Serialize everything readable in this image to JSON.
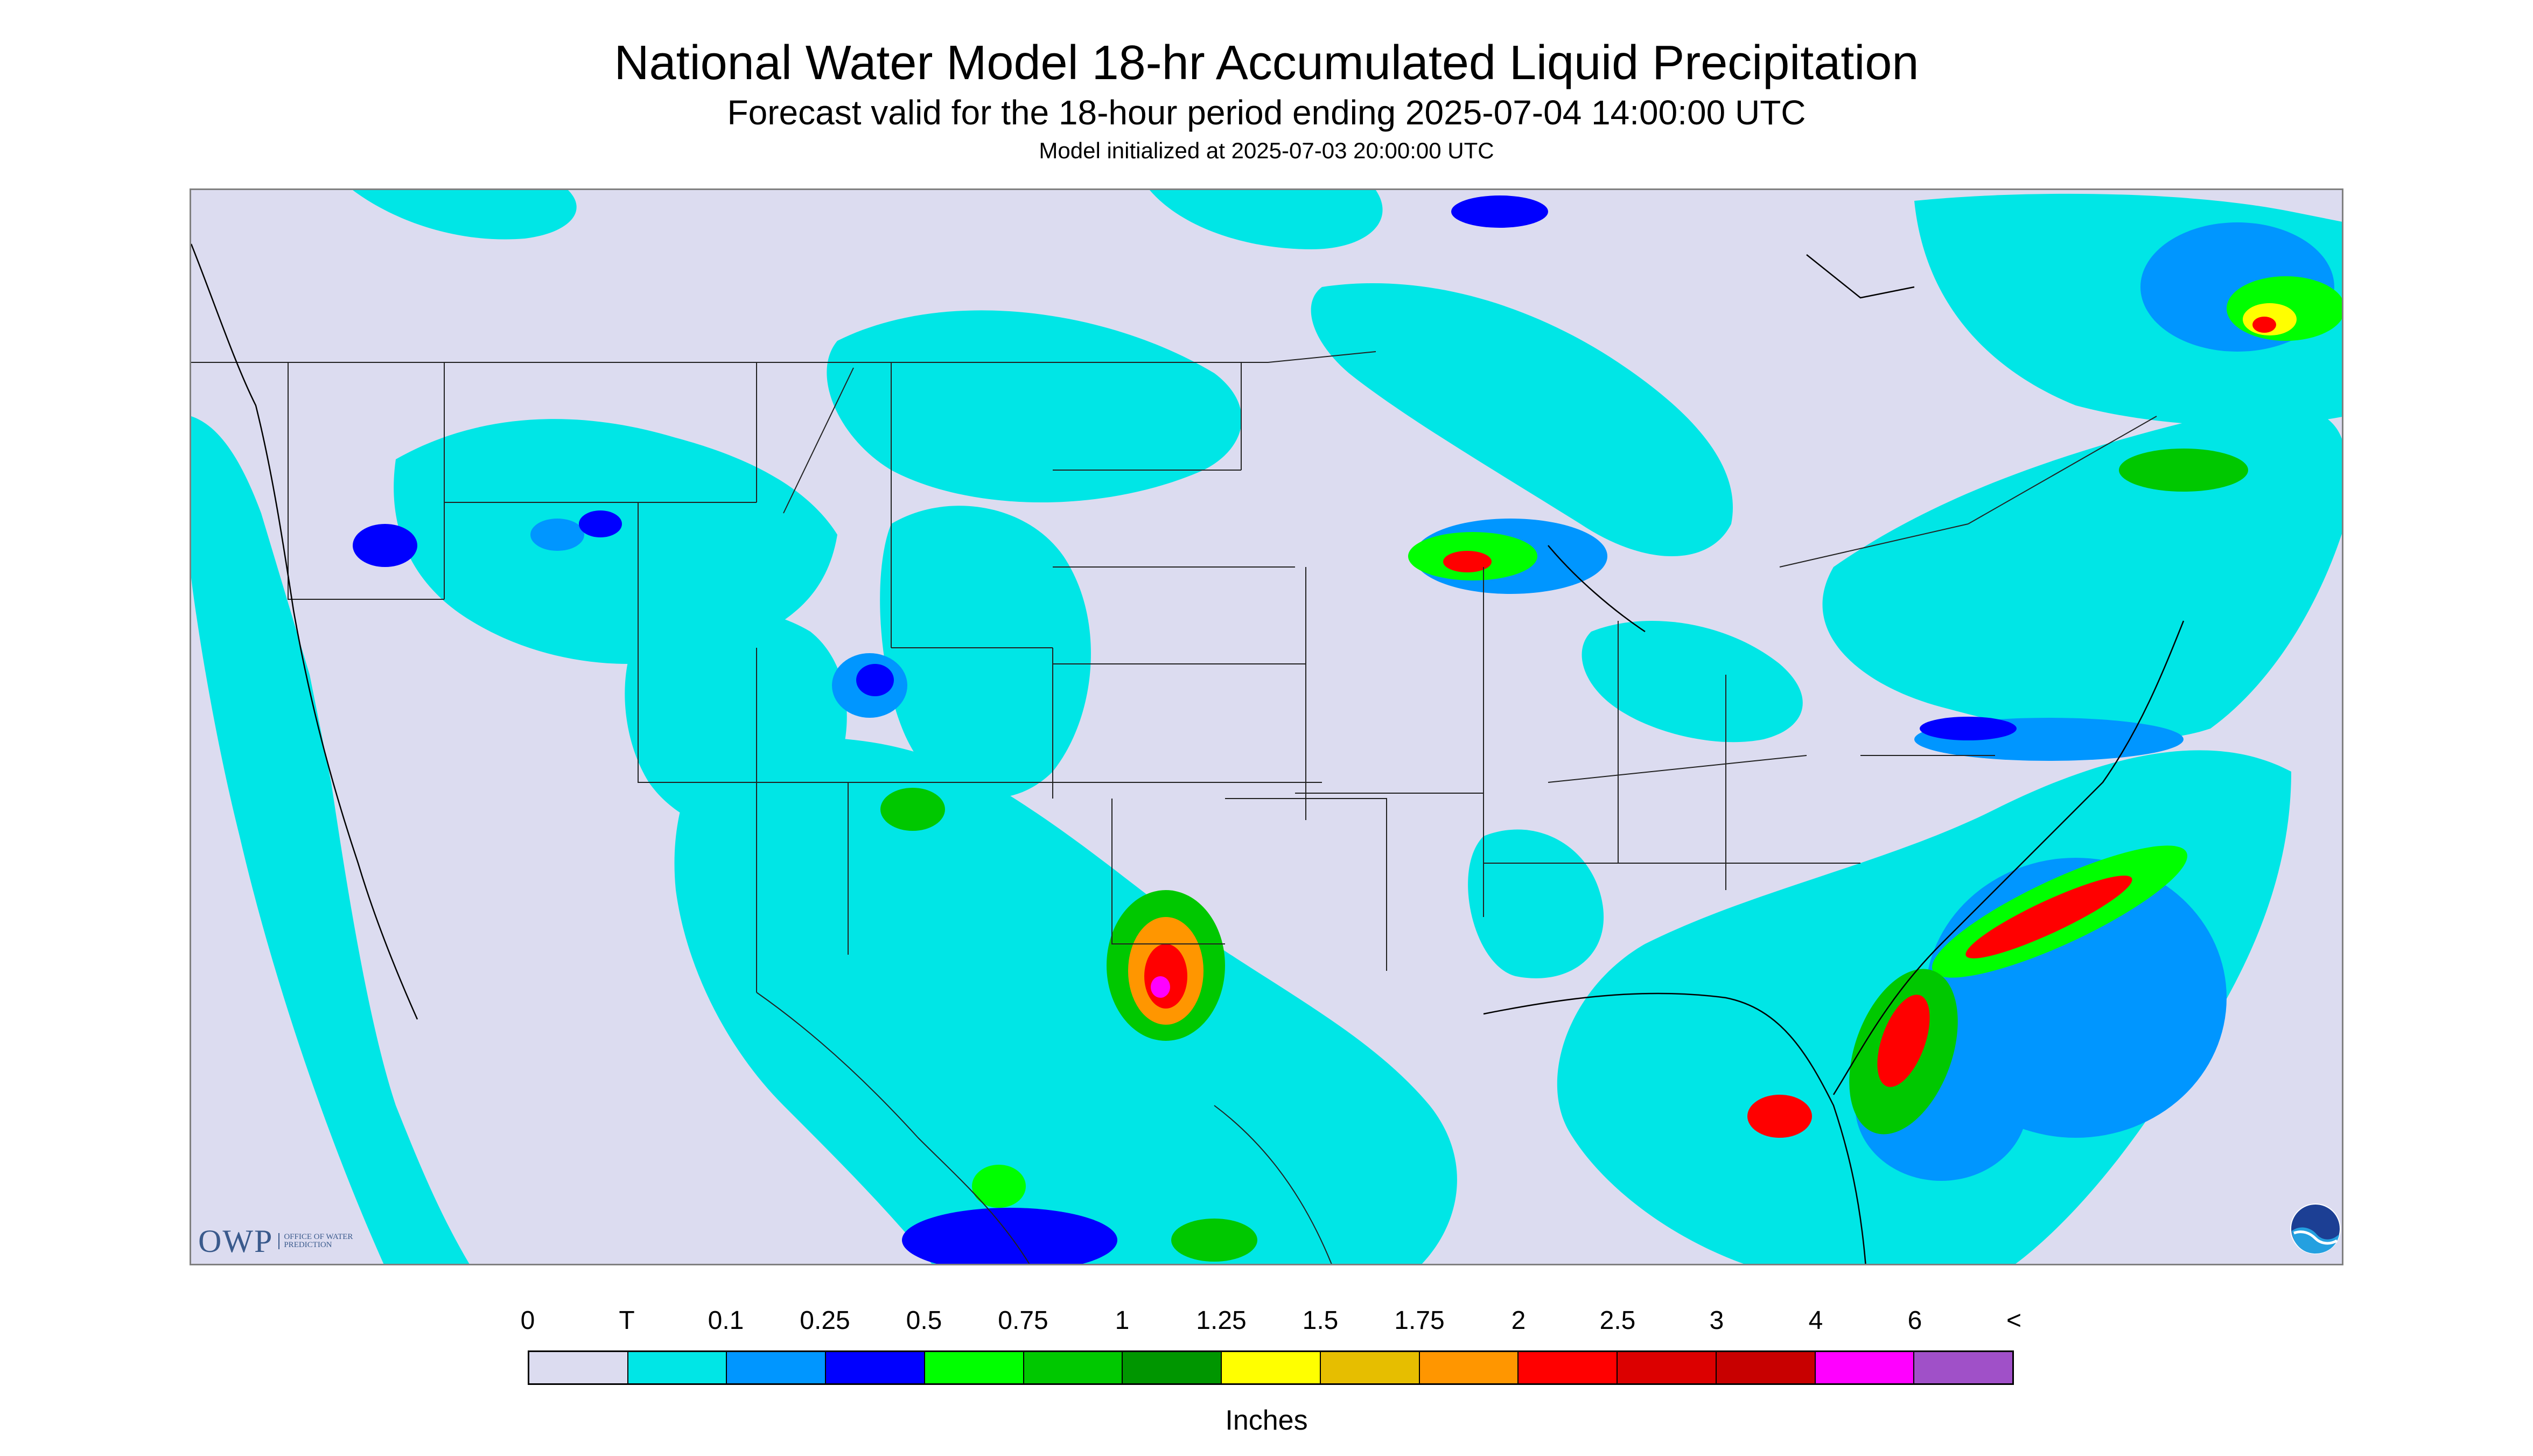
{
  "title": "National Water Model 18-hr Accumulated Liquid Precipitation",
  "subtitle": "Forecast valid for the 18-hour period ending 2025-07-04 14:00:00 UTC",
  "init_line": "Model initialized at 2025-07-03 20:00:00 UTC",
  "legend": {
    "tick_labels": [
      "0",
      "T",
      "0.1",
      "0.25",
      "0.5",
      "0.75",
      "1",
      "1.25",
      "1.5",
      "1.75",
      "2",
      "2.5",
      "3",
      "4",
      "6",
      "<"
    ],
    "colors": [
      "#dcdcf0",
      "#00e6e6",
      "#0096ff",
      "#0000ff",
      "#00ff00",
      "#00c800",
      "#009600",
      "#ffff00",
      "#e6be00",
      "#ff9600",
      "#ff0000",
      "#dc0000",
      "#c80000",
      "#ff00ff",
      "#a050c8"
    ],
    "units": "Inches"
  },
  "logos": {
    "owp_text": "OWP",
    "owp_sub": "OFFICE OF WATER PREDICTION",
    "noaa_icon": "noaa-logo"
  }
}
